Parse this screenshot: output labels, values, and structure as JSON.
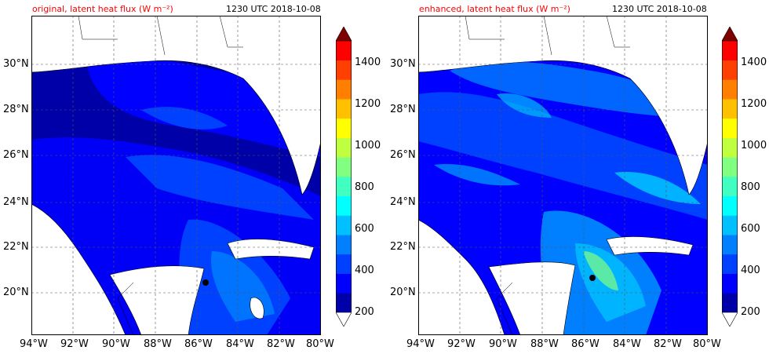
{
  "colors": {
    "levels": [
      "#0000a8",
      "#0000ff",
      "#0040ff",
      "#0080ff",
      "#00c0ff",
      "#00ffff",
      "#40ffc0",
      "#80ff80",
      "#c0ff40",
      "#ffff00",
      "#ffc000",
      "#ff8000",
      "#ff4000",
      "#ff0000",
      "#c00000",
      "#800000"
    ],
    "land": "#ffffff",
    "title_accent": "#ff0000"
  },
  "panels": [
    {
      "title": "original, latent heat flux (W m⁻²)",
      "timestamp": "1230 UTC 2018-10-08"
    },
    {
      "title": "enhanced, latent heat flux (W m⁻²)",
      "timestamp": "1230 UTC 2018-10-08"
    }
  ],
  "axes": {
    "lat_labels": [
      "30°N",
      "28°N",
      "26°N",
      "24°N",
      "22°N",
      "20°N"
    ],
    "lon_labels": [
      "94°W",
      "92°W",
      "90°W",
      "88°W",
      "86°W",
      "84°W",
      "82°W",
      "80°W"
    ]
  },
  "colorbar": {
    "ticks": [
      "1400",
      "1200",
      "1000",
      "800",
      "600",
      "400",
      "200"
    ]
  }
}
